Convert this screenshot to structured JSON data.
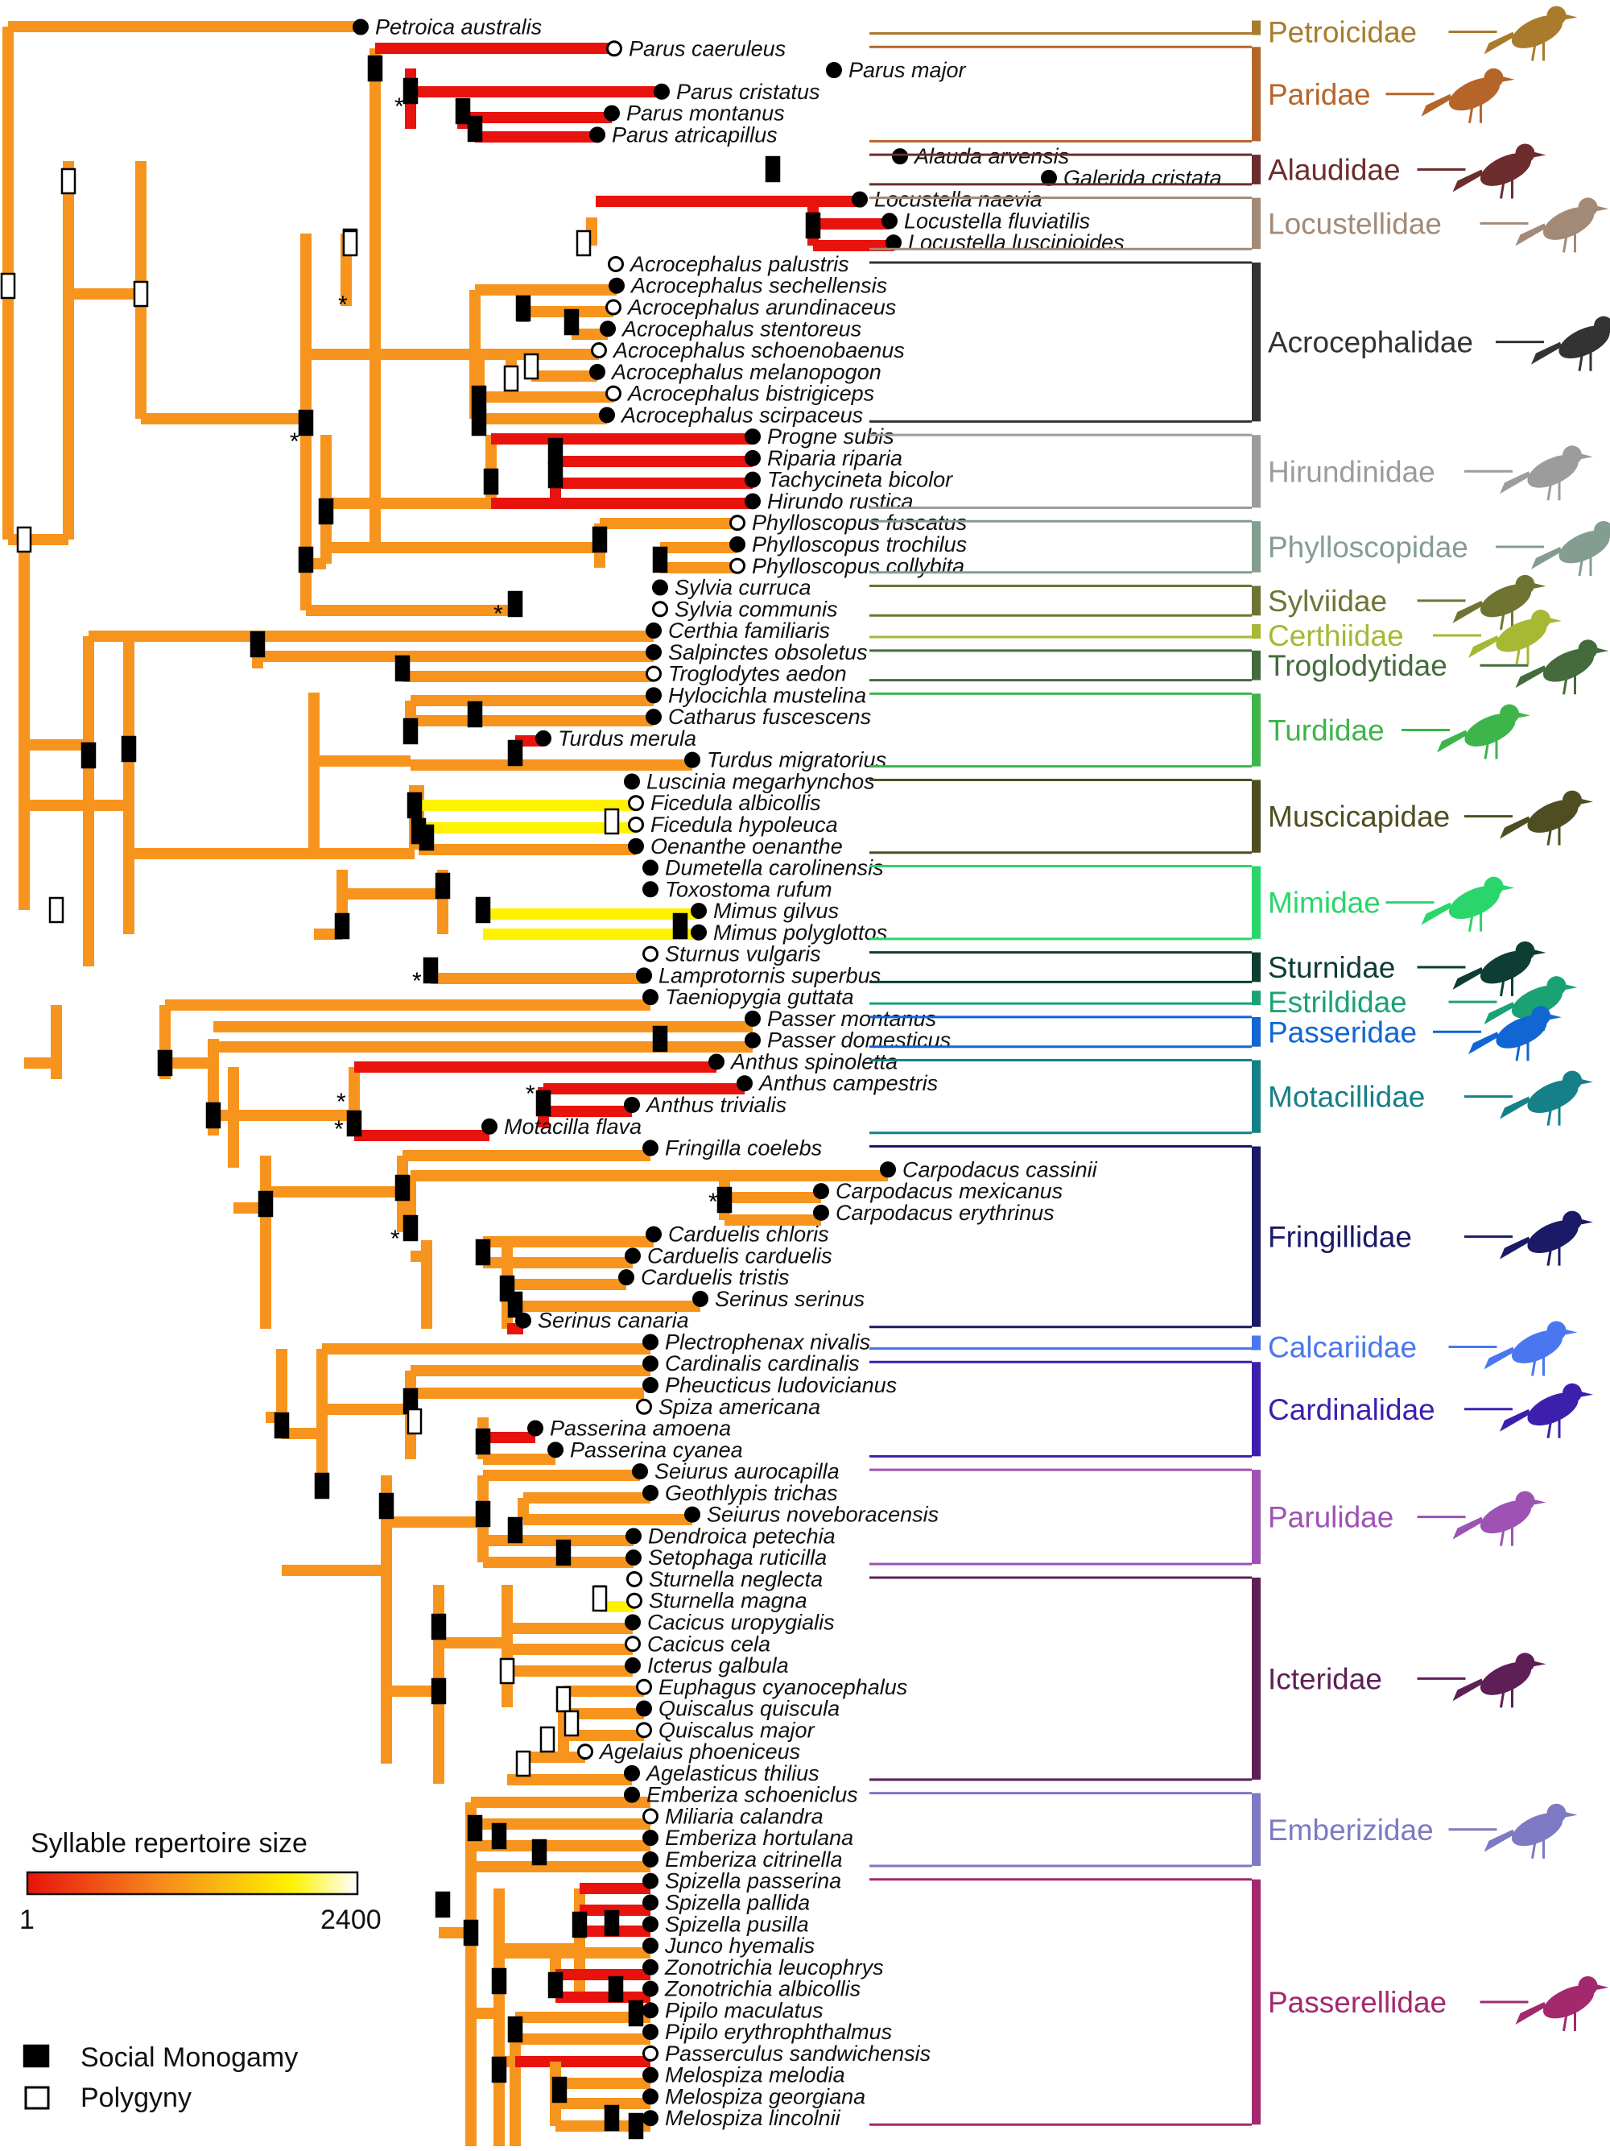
{
  "legend": {
    "title": "Syllable repertoire size",
    "min_label": "1",
    "max_label": "2400",
    "monogamy_label": "Social Monogamy",
    "polygyny_label": "Polygyny",
    "gradient": [
      "#e8130d",
      "#f7881d",
      "#fff200",
      "#ffffff"
    ]
  },
  "colors": {
    "branch": "#f7941d",
    "star": "*"
  },
  "species": [
    {
      "name": "Petroica australis",
      "m": "mono"
    },
    {
      "name": "Parus caeruleus",
      "m": "poly"
    },
    {
      "name": "Parus major",
      "m": "mono"
    },
    {
      "name": "Parus cristatus",
      "m": "mono"
    },
    {
      "name": "Parus montanus",
      "m": "mono"
    },
    {
      "name": "Parus atricapillus",
      "m": "mono"
    },
    {
      "name": "Alauda arvensis",
      "m": "mono"
    },
    {
      "name": "Galerida cristata",
      "m": "mono"
    },
    {
      "name": "Locustella naevia",
      "m": "mono"
    },
    {
      "name": "Locustella fluviatilis",
      "m": "mono"
    },
    {
      "name": "Locustella luscinioides",
      "m": "mono"
    },
    {
      "name": "Acrocephalus palustris",
      "m": "poly"
    },
    {
      "name": "Acrocephalus sechellensis",
      "m": "mono"
    },
    {
      "name": "Acrocephalus arundinaceus",
      "m": "poly"
    },
    {
      "name": "Acrocephalus stentoreus",
      "m": "mono"
    },
    {
      "name": "Acrocephalus schoenobaenus",
      "m": "poly"
    },
    {
      "name": "Acrocephalus melanopogon",
      "m": "mono"
    },
    {
      "name": "Acrocephalus bistrigiceps",
      "m": "poly"
    },
    {
      "name": "Acrocephalus scirpaceus",
      "m": "mono"
    },
    {
      "name": "Progne subis",
      "m": "mono"
    },
    {
      "name": "Riparia riparia",
      "m": "mono"
    },
    {
      "name": "Tachycineta bicolor",
      "m": "mono"
    },
    {
      "name": "Hirundo rustica",
      "m": "mono"
    },
    {
      "name": "Phylloscopus fuscatus",
      "m": "poly"
    },
    {
      "name": "Phylloscopus trochilus",
      "m": "mono"
    },
    {
      "name": "Phylloscopus collybita",
      "m": "poly"
    },
    {
      "name": "Sylvia curruca",
      "m": "mono"
    },
    {
      "name": "Sylvia communis",
      "m": "poly"
    },
    {
      "name": "Certhia familiaris",
      "m": "mono"
    },
    {
      "name": "Salpinctes obsoletus",
      "m": "mono"
    },
    {
      "name": "Troglodytes aedon",
      "m": "poly"
    },
    {
      "name": "Hylocichla mustelina",
      "m": "mono"
    },
    {
      "name": "Catharus fuscescens",
      "m": "mono"
    },
    {
      "name": "Turdus merula",
      "m": "mono"
    },
    {
      "name": "Turdus migratorius",
      "m": "mono"
    },
    {
      "name": "Luscinia megarhynchos",
      "m": "mono"
    },
    {
      "name": "Ficedula albicollis",
      "m": "poly"
    },
    {
      "name": "Ficedula hypoleuca",
      "m": "poly"
    },
    {
      "name": "Oenanthe oenanthe",
      "m": "mono"
    },
    {
      "name": "Dumetella carolinensis",
      "m": "mono"
    },
    {
      "name": "Toxostoma rufum",
      "m": "mono"
    },
    {
      "name": "Mimus gilvus",
      "m": "mono"
    },
    {
      "name": "Mimus polyglottos",
      "m": "mono"
    },
    {
      "name": "Sturnus vulgaris",
      "m": "poly"
    },
    {
      "name": "Lamprotornis superbus",
      "m": "mono"
    },
    {
      "name": "Taeniopygia guttata",
      "m": "mono"
    },
    {
      "name": "Passer montanus",
      "m": "mono"
    },
    {
      "name": "Passer domesticus",
      "m": "mono"
    },
    {
      "name": "Anthus spinoletta",
      "m": "mono"
    },
    {
      "name": "Anthus campestris",
      "m": "mono"
    },
    {
      "name": "Anthus trivialis",
      "m": "mono"
    },
    {
      "name": "Motacilla flava",
      "m": "mono"
    },
    {
      "name": "Fringilla coelebs",
      "m": "mono"
    },
    {
      "name": "Carpodacus cassinii",
      "m": "mono"
    },
    {
      "name": "Carpodacus mexicanus",
      "m": "mono"
    },
    {
      "name": "Carpodacus erythrinus",
      "m": "mono"
    },
    {
      "name": "Carduelis chloris",
      "m": "mono"
    },
    {
      "name": "Carduelis carduelis",
      "m": "mono"
    },
    {
      "name": "Carduelis tristis",
      "m": "mono"
    },
    {
      "name": "Serinus serinus",
      "m": "mono"
    },
    {
      "name": "Serinus canaria",
      "m": "mono"
    },
    {
      "name": "Plectrophenax nivalis",
      "m": "mono"
    },
    {
      "name": "Cardinalis cardinalis",
      "m": "mono"
    },
    {
      "name": "Pheucticus ludovicianus",
      "m": "mono"
    },
    {
      "name": "Spiza americana",
      "m": "poly"
    },
    {
      "name": "Passerina amoena",
      "m": "mono"
    },
    {
      "name": "Passerina cyanea",
      "m": "mono"
    },
    {
      "name": "Seiurus aurocapilla",
      "m": "mono"
    },
    {
      "name": "Geothlypis trichas",
      "m": "mono"
    },
    {
      "name": "Seiurus noveboracensis",
      "m": "mono"
    },
    {
      "name": "Dendroica petechia",
      "m": "mono"
    },
    {
      "name": "Setophaga ruticilla",
      "m": "mono"
    },
    {
      "name": "Sturnella neglecta",
      "m": "poly"
    },
    {
      "name": "Sturnella magna",
      "m": "poly"
    },
    {
      "name": "Cacicus uropygialis",
      "m": "mono"
    },
    {
      "name": "Cacicus cela",
      "m": "poly"
    },
    {
      "name": "Icterus galbula",
      "m": "mono"
    },
    {
      "name": "Euphagus cyanocephalus",
      "m": "poly"
    },
    {
      "name": "Quiscalus quiscula",
      "m": "mono"
    },
    {
      "name": "Quiscalus major",
      "m": "poly"
    },
    {
      "name": "Agelaius phoeniceus",
      "m": "poly"
    },
    {
      "name": "Agelasticus thilius",
      "m": "mono"
    },
    {
      "name": "Emberiza schoeniclus",
      "m": "mono"
    },
    {
      "name": "Miliaria calandra",
      "m": "poly"
    },
    {
      "name": "Emberiza hortulana",
      "m": "mono"
    },
    {
      "name": "Emberiza citrinella",
      "m": "mono"
    },
    {
      "name": "Spizella passerina",
      "m": "mono"
    },
    {
      "name": "Spizella pallida",
      "m": "mono"
    },
    {
      "name": "Spizella pusilla",
      "m": "mono"
    },
    {
      "name": "Junco hyemalis",
      "m": "mono"
    },
    {
      "name": "Zonotrichia leucophrys",
      "m": "mono"
    },
    {
      "name": "Zonotrichia albicollis",
      "m": "mono"
    },
    {
      "name": "Pipilo maculatus",
      "m": "mono"
    },
    {
      "name": "Pipilo erythrophthalmus",
      "m": "mono"
    },
    {
      "name": "Passerculus sandwichensis",
      "m": "poly"
    },
    {
      "name": "Melospiza melodia",
      "m": "mono"
    },
    {
      "name": "Melospiza georgiana",
      "m": "mono"
    },
    {
      "name": "Melospiza lincolnii",
      "m": "mono"
    }
  ],
  "families": [
    {
      "name": "Petroicidae",
      "color": "#a97b2c",
      "from": 0,
      "to": 0
    },
    {
      "name": "Paridae",
      "color": "#b5652a",
      "from": 1,
      "to": 5
    },
    {
      "name": "Alaudidae",
      "color": "#6d2d2e",
      "from": 6,
      "to": 7
    },
    {
      "name": "Locustellidae",
      "color": "#a38a77",
      "from": 8,
      "to": 10
    },
    {
      "name": "Acrocephalidae",
      "color": "#333333",
      "from": 11,
      "to": 18
    },
    {
      "name": "Hirundinidae",
      "color": "#9c9c9c",
      "from": 19,
      "to": 22
    },
    {
      "name": "Phylloscopidae",
      "color": "#849d91",
      "from": 23,
      "to": 25
    },
    {
      "name": "Sylviidae",
      "color": "#6f7433",
      "from": 26,
      "to": 27
    },
    {
      "name": "Certhiidae",
      "color": "#a6b834",
      "from": 28,
      "to": 28
    },
    {
      "name": "Troglodytidae",
      "color": "#456b3d",
      "from": 29,
      "to": 30
    },
    {
      "name": "Turdidae",
      "color": "#3db54a",
      "from": 31,
      "to": 34
    },
    {
      "name": "Muscicapidae",
      "color": "#4f4e22",
      "from": 35,
      "to": 38
    },
    {
      "name": "Mimidae",
      "color": "#2ad66c",
      "from": 39,
      "to": 42
    },
    {
      "name": "Sturnidae",
      "color": "#0e3d34",
      "from": 43,
      "to": 44
    },
    {
      "name": "Estrildidae",
      "color": "#1aa275",
      "from": 45,
      "to": 45
    },
    {
      "name": "Passeridae",
      "color": "#1166d4",
      "from": 46,
      "to": 47
    },
    {
      "name": "Motacillidae",
      "color": "#158088",
      "from": 48,
      "to": 51
    },
    {
      "name": "Fringillidae",
      "color": "#1a1a66",
      "from": 52,
      "to": 60
    },
    {
      "name": "Calcariidae",
      "color": "#4a77f0",
      "from": 61,
      "to": 61
    },
    {
      "name": "Cardinalidae",
      "color": "#3d1fae",
      "from": 62,
      "to": 66
    },
    {
      "name": "Parulidae",
      "color": "#9e52b3",
      "from": 67,
      "to": 71
    },
    {
      "name": "Icteridae",
      "color": "#5e1f56",
      "from": 72,
      "to": 81
    },
    {
      "name": "Emberizidae",
      "color": "#7d79c2",
      "from": 82,
      "to": 85
    },
    {
      "name": "Passerellidae",
      "color": "#a3286e",
      "from": 86,
      "to": 97
    }
  ]
}
